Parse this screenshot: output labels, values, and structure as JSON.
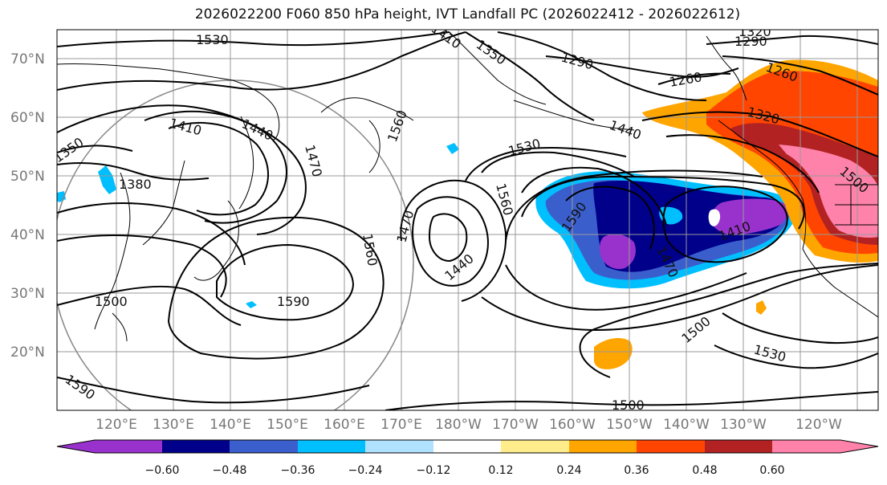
{
  "title": "2026022200 F060 850 hPa height, IVT Landfall PC (2026022412 - 2026022612)",
  "latitude_labels": [
    "70°N",
    "60°N",
    "50°N",
    "40°N",
    "30°N",
    "20°N"
  ],
  "longitude_labels": [
    "120°E",
    "130°E",
    "140°E",
    "150°E",
    "160°E",
    "170°E",
    "180°W",
    "170°W",
    "160°W",
    "150°W",
    "140°W",
    "130°W",
    "120°W"
  ],
  "colorbar": {
    "ticks": [
      "−0.60",
      "−0.48",
      "−0.36",
      "−0.24",
      "−0.12",
      "0.12",
      "0.24",
      "0.36",
      "0.48",
      "0.60"
    ],
    "colors": {
      "lt_-0.60": "#9932cc",
      "-0.60_-0.48": "#00008b",
      "-0.48_-0.36": "#3a5fcd",
      "-0.36_-0.24": "#00bfff",
      "-0.24_-0.12": "#b0e2ff",
      "-0.12_0.12": "#ffffff",
      "0.12_0.24": "#ffec8b",
      "0.24_0.36": "#ffa500",
      "0.36_0.48": "#ff4500",
      "0.48_0.60": "#b22222",
      "gt_0.60": "#ff82ab"
    }
  },
  "contour_labels": [
    "1530",
    "1290",
    "1320",
    "1350",
    "1290",
    "1260",
    "1260",
    "1320",
    "1410",
    "1440",
    "1350",
    "1470",
    "1380",
    "1560",
    "1530",
    "1440",
    "1560",
    "1590",
    "1470",
    "1440",
    "1560",
    "1590",
    "1410",
    "1470",
    "1500",
    "1590",
    "1500",
    "1530",
    "1500",
    "1500",
    "1410"
  ]
}
